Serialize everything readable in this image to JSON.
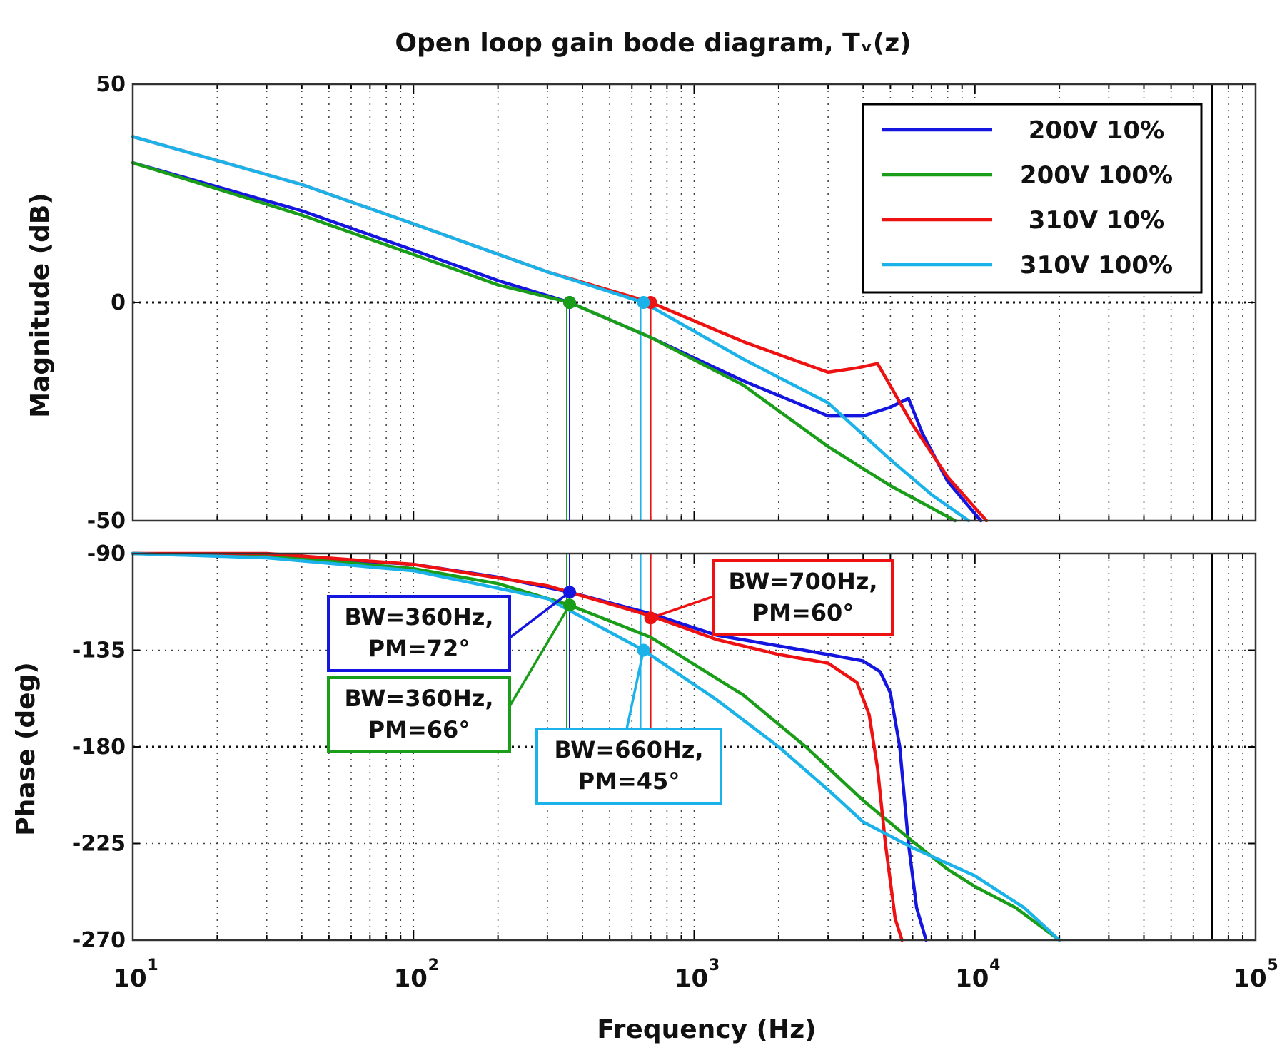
{
  "chart_data": [
    {
      "type": "line",
      "panel": "magnitude",
      "title": "Open loop gain bode diagram, Tᵥ(z)",
      "xlabel": "",
      "ylabel": "Magnitude (dB)",
      "xscale": "log",
      "xlim": [
        10,
        100000
      ],
      "ylim": [
        -50,
        50
      ],
      "yticks": [
        "50",
        "0",
        "-50"
      ],
      "ytick_values": [
        50,
        0,
        -50
      ],
      "reference_lines": [
        0
      ],
      "grid": true,
      "legend_position": "top-right",
      "series": [
        {
          "name": "200V 10%",
          "color": "#1515e0",
          "x": [
            10,
            40,
            100,
            200,
            360,
            700,
            1500,
            3000,
            4000,
            5000,
            5800,
            6500,
            8000,
            10500
          ],
          "y": [
            32,
            21,
            12,
            5,
            0,
            -8,
            -18,
            -26,
            -26,
            -24,
            -22,
            -30,
            -41,
            -50
          ]
        },
        {
          "name": "200V 100%",
          "color": "#1a9e1a",
          "x": [
            10,
            40,
            100,
            200,
            360,
            700,
            1500,
            3000,
            5000,
            8500
          ],
          "y": [
            32,
            20,
            11,
            4,
            0,
            -8,
            -19,
            -33,
            -42,
            -50
          ]
        },
        {
          "name": "310V 10%",
          "color": "#ee1111",
          "x": [
            10,
            40,
            100,
            300,
            700,
            1500,
            3000,
            3800,
            4500,
            6000,
            8000,
            11000
          ],
          "y": [
            38,
            27,
            18,
            7,
            0,
            -9,
            -16,
            -15,
            -14,
            -28,
            -40,
            -50
          ]
        },
        {
          "name": "310V 100%",
          "color": "#1ab2e8",
          "x": [
            10,
            40,
            100,
            300,
            660,
            1500,
            3000,
            5000,
            7000,
            9500
          ],
          "y": [
            38,
            27,
            18,
            7,
            0,
            -13,
            -23,
            -36,
            -44,
            -50
          ]
        }
      ],
      "markers": [
        {
          "series": "200V 10%",
          "x": 360,
          "y": 0
        },
        {
          "series": "200V 100%",
          "x": 360,
          "y": 0
        },
        {
          "series": "310V 10%",
          "x": 700,
          "y": 0
        },
        {
          "series": "310V 100%",
          "x": 660,
          "y": 0
        }
      ]
    },
    {
      "type": "line",
      "panel": "phase",
      "xlabel": "Frequency (Hz)",
      "ylabel": "Phase (deg)",
      "xscale": "log",
      "xlim": [
        10,
        100000
      ],
      "ylim": [
        -270,
        -90
      ],
      "xticks": [
        {
          "base": "10",
          "exp": "1"
        },
        {
          "base": "10",
          "exp": "2"
        },
        {
          "base": "10",
          "exp": "3"
        },
        {
          "base": "10",
          "exp": "4"
        },
        {
          "base": "10",
          "exp": "5"
        }
      ],
      "xtick_values": [
        10,
        100,
        1000,
        10000,
        100000
      ],
      "yticks": [
        "-90",
        "-135",
        "-180",
        "-225",
        "-270"
      ],
      "ytick_values": [
        -90,
        -135,
        -180,
        -225,
        -270
      ],
      "reference_lines": [
        -180
      ],
      "grid": true,
      "series": [
        {
          "name": "200V 10%",
          "color": "#1515e0",
          "x": [
            10,
            30,
            100,
            200,
            360,
            700,
            1200,
            2000,
            3000,
            4000,
            4600,
            5000,
            5400,
            5800,
            6200,
            6700
          ],
          "y": [
            -90,
            -91,
            -95,
            -101,
            -108,
            -118,
            -128,
            -133,
            -137,
            -140,
            -145,
            -155,
            -180,
            -225,
            -255,
            -270
          ]
        },
        {
          "name": "200V 100%",
          "color": "#1a9e1a",
          "x": [
            10,
            30,
            100,
            200,
            360,
            700,
            1500,
            2500,
            4000,
            6000,
            8000,
            10000,
            14000,
            20000
          ],
          "y": [
            -90,
            -91,
            -97,
            -104,
            -114,
            -129,
            -156,
            -180,
            -205,
            -224,
            -237,
            -245,
            -255,
            -270
          ]
        },
        {
          "name": "310V 10%",
          "color": "#ee1111",
          "x": [
            10,
            30,
            100,
            300,
            700,
            1200,
            2000,
            3000,
            3800,
            4200,
            4500,
            4800,
            5200,
            5500
          ],
          "y": [
            -90,
            -90,
            -95,
            -105,
            -119,
            -130,
            -137,
            -141,
            -150,
            -165,
            -190,
            -225,
            -260,
            -270
          ]
        },
        {
          "name": "310V 100%",
          "color": "#1ab2e8",
          "x": [
            10,
            30,
            100,
            300,
            660,
            1200,
            2000,
            3000,
            4000,
            6000,
            10000,
            15000,
            20000
          ],
          "y": [
            -90,
            -92,
            -98,
            -111,
            -135,
            -158,
            -180,
            -200,
            -215,
            -227,
            -240,
            -255,
            -270
          ]
        }
      ],
      "markers": [
        {
          "series": "200V 10%",
          "x": 360,
          "y": -108
        },
        {
          "series": "200V 100%",
          "x": 360,
          "y": -114
        },
        {
          "series": "310V 10%",
          "x": 700,
          "y": -120
        },
        {
          "series": "310V 100%",
          "x": 660,
          "y": -135
        }
      ],
      "annotations": [
        {
          "series": "200V 10%",
          "lines": [
            "BW=360Hz,",
            "PM=72°"
          ]
        },
        {
          "series": "200V 100%",
          "lines": [
            "BW=360Hz,",
            "PM=66°"
          ]
        },
        {
          "series": "310V 100%",
          "lines": [
            "BW=660Hz,",
            "PM=45°"
          ]
        },
        {
          "series": "310V 10%",
          "lines": [
            "BW=700Hz,",
            "PM=60°"
          ]
        }
      ]
    }
  ]
}
